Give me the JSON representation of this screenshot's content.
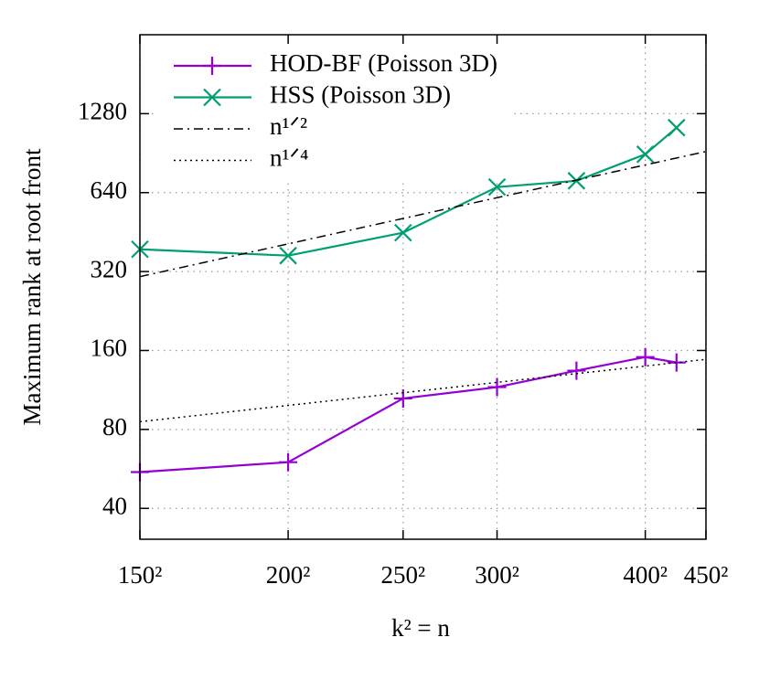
{
  "chart_data": {
    "type": "line",
    "xlabel": "k² = n",
    "ylabel": "Maximum rank at root front",
    "xscale": "log",
    "yscale": "log",
    "grid": true,
    "legend": "upper left",
    "xlim": [
      22500,
      202500
    ],
    "ylim": [
      30.5,
      2560
    ],
    "xticks": [
      {
        "value": 22500,
        "label": "150²"
      },
      {
        "value": 40000,
        "label": "200²"
      },
      {
        "value": 62500,
        "label": "250²"
      },
      {
        "value": 90000,
        "label": "300²"
      },
      {
        "value": 160000,
        "label": "400²"
      },
      {
        "value": 202500,
        "label": "450²"
      }
    ],
    "yticks": [
      40,
      80,
      160,
      320,
      640,
      1280
    ],
    "series": [
      {
        "name": "HOD-BF (Poisson 3D)",
        "color": "#9400d3",
        "marker": "plus",
        "dash": "solid",
        "x": [
          22500,
          40000,
          62500,
          90000,
          122500,
          160000,
          180625
        ],
        "values": [
          55,
          60,
          105,
          116,
          134,
          151,
          144
        ]
      },
      {
        "name": "HSS (Poisson 3D)",
        "color": "#009e73",
        "marker": "cross",
        "dash": "solid",
        "x": [
          22500,
          40000,
          62500,
          90000,
          122500,
          160000,
          180625
        ],
        "values": [
          389,
          368,
          450,
          672,
          710,
          896,
          1132
        ]
      },
      {
        "name": "n¹ᐟ²",
        "color": "#000000",
        "marker": "none",
        "dash": "dashdot",
        "x": [
          22500,
          202500
        ],
        "values": [
          306,
          918
        ]
      },
      {
        "name": "n¹ᐟ⁴",
        "color": "#000000",
        "marker": "none",
        "dash": "dotted",
        "x": [
          22500,
          202500
        ],
        "values": [
          85.6,
          148
        ]
      }
    ]
  }
}
